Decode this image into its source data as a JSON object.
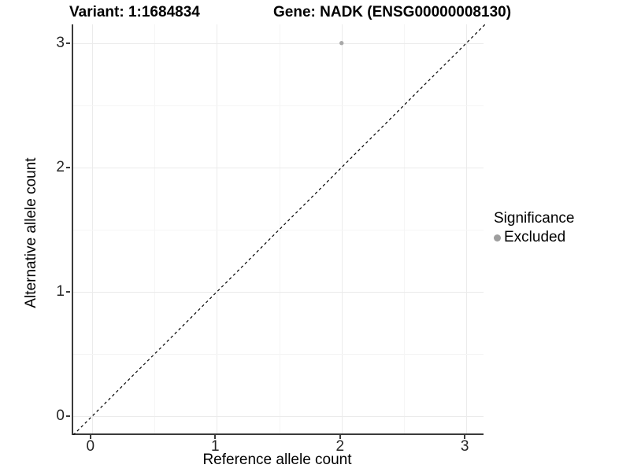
{
  "titles": {
    "variant": "Variant: 1:1684834",
    "gene": "Gene: NADK (ENSG00000008130)"
  },
  "axes": {
    "x": {
      "label": "Reference allele count",
      "tick_labels": [
        "0",
        "1",
        "2",
        "3"
      ]
    },
    "y": {
      "label": "Alternative allele count",
      "tick_labels": [
        "0",
        "1",
        "2",
        "3"
      ]
    }
  },
  "legend": {
    "title": "Significance",
    "items": [
      {
        "label": "Excluded",
        "color": "#a3a3a3"
      }
    ]
  },
  "colors": {
    "point": "#a9a9a9",
    "legend_key": "#9e9e9e",
    "axis_line": "#3a3a3a",
    "grid_major": "#ebebeb",
    "grid_minor": "#f5f5f5",
    "reference_line": "#000000",
    "background": "#ffffff"
  },
  "chart_data": {
    "type": "scatter",
    "title": "Variant: 1:1684834    Gene: NADK (ENSG00000008130)",
    "xlabel": "Reference allele count",
    "ylabel": "Alternative allele count",
    "xlim": [
      -0.15,
      3.15
    ],
    "ylim": [
      -0.15,
      3.15
    ],
    "x_ticks": [
      0,
      1,
      2,
      3
    ],
    "y_ticks": [
      0,
      1,
      2,
      3
    ],
    "minor_grid_step": 0.5,
    "grid": "major+minor",
    "legend_position": "right",
    "series": [
      {
        "name": "Excluded",
        "color": "#a9a9a9",
        "points": [
          {
            "x": 2,
            "y": 3
          }
        ]
      }
    ],
    "reference_line": {
      "type": "identity",
      "slope": 1,
      "intercept": 0,
      "style": "dashed",
      "color": "#000000"
    }
  }
}
